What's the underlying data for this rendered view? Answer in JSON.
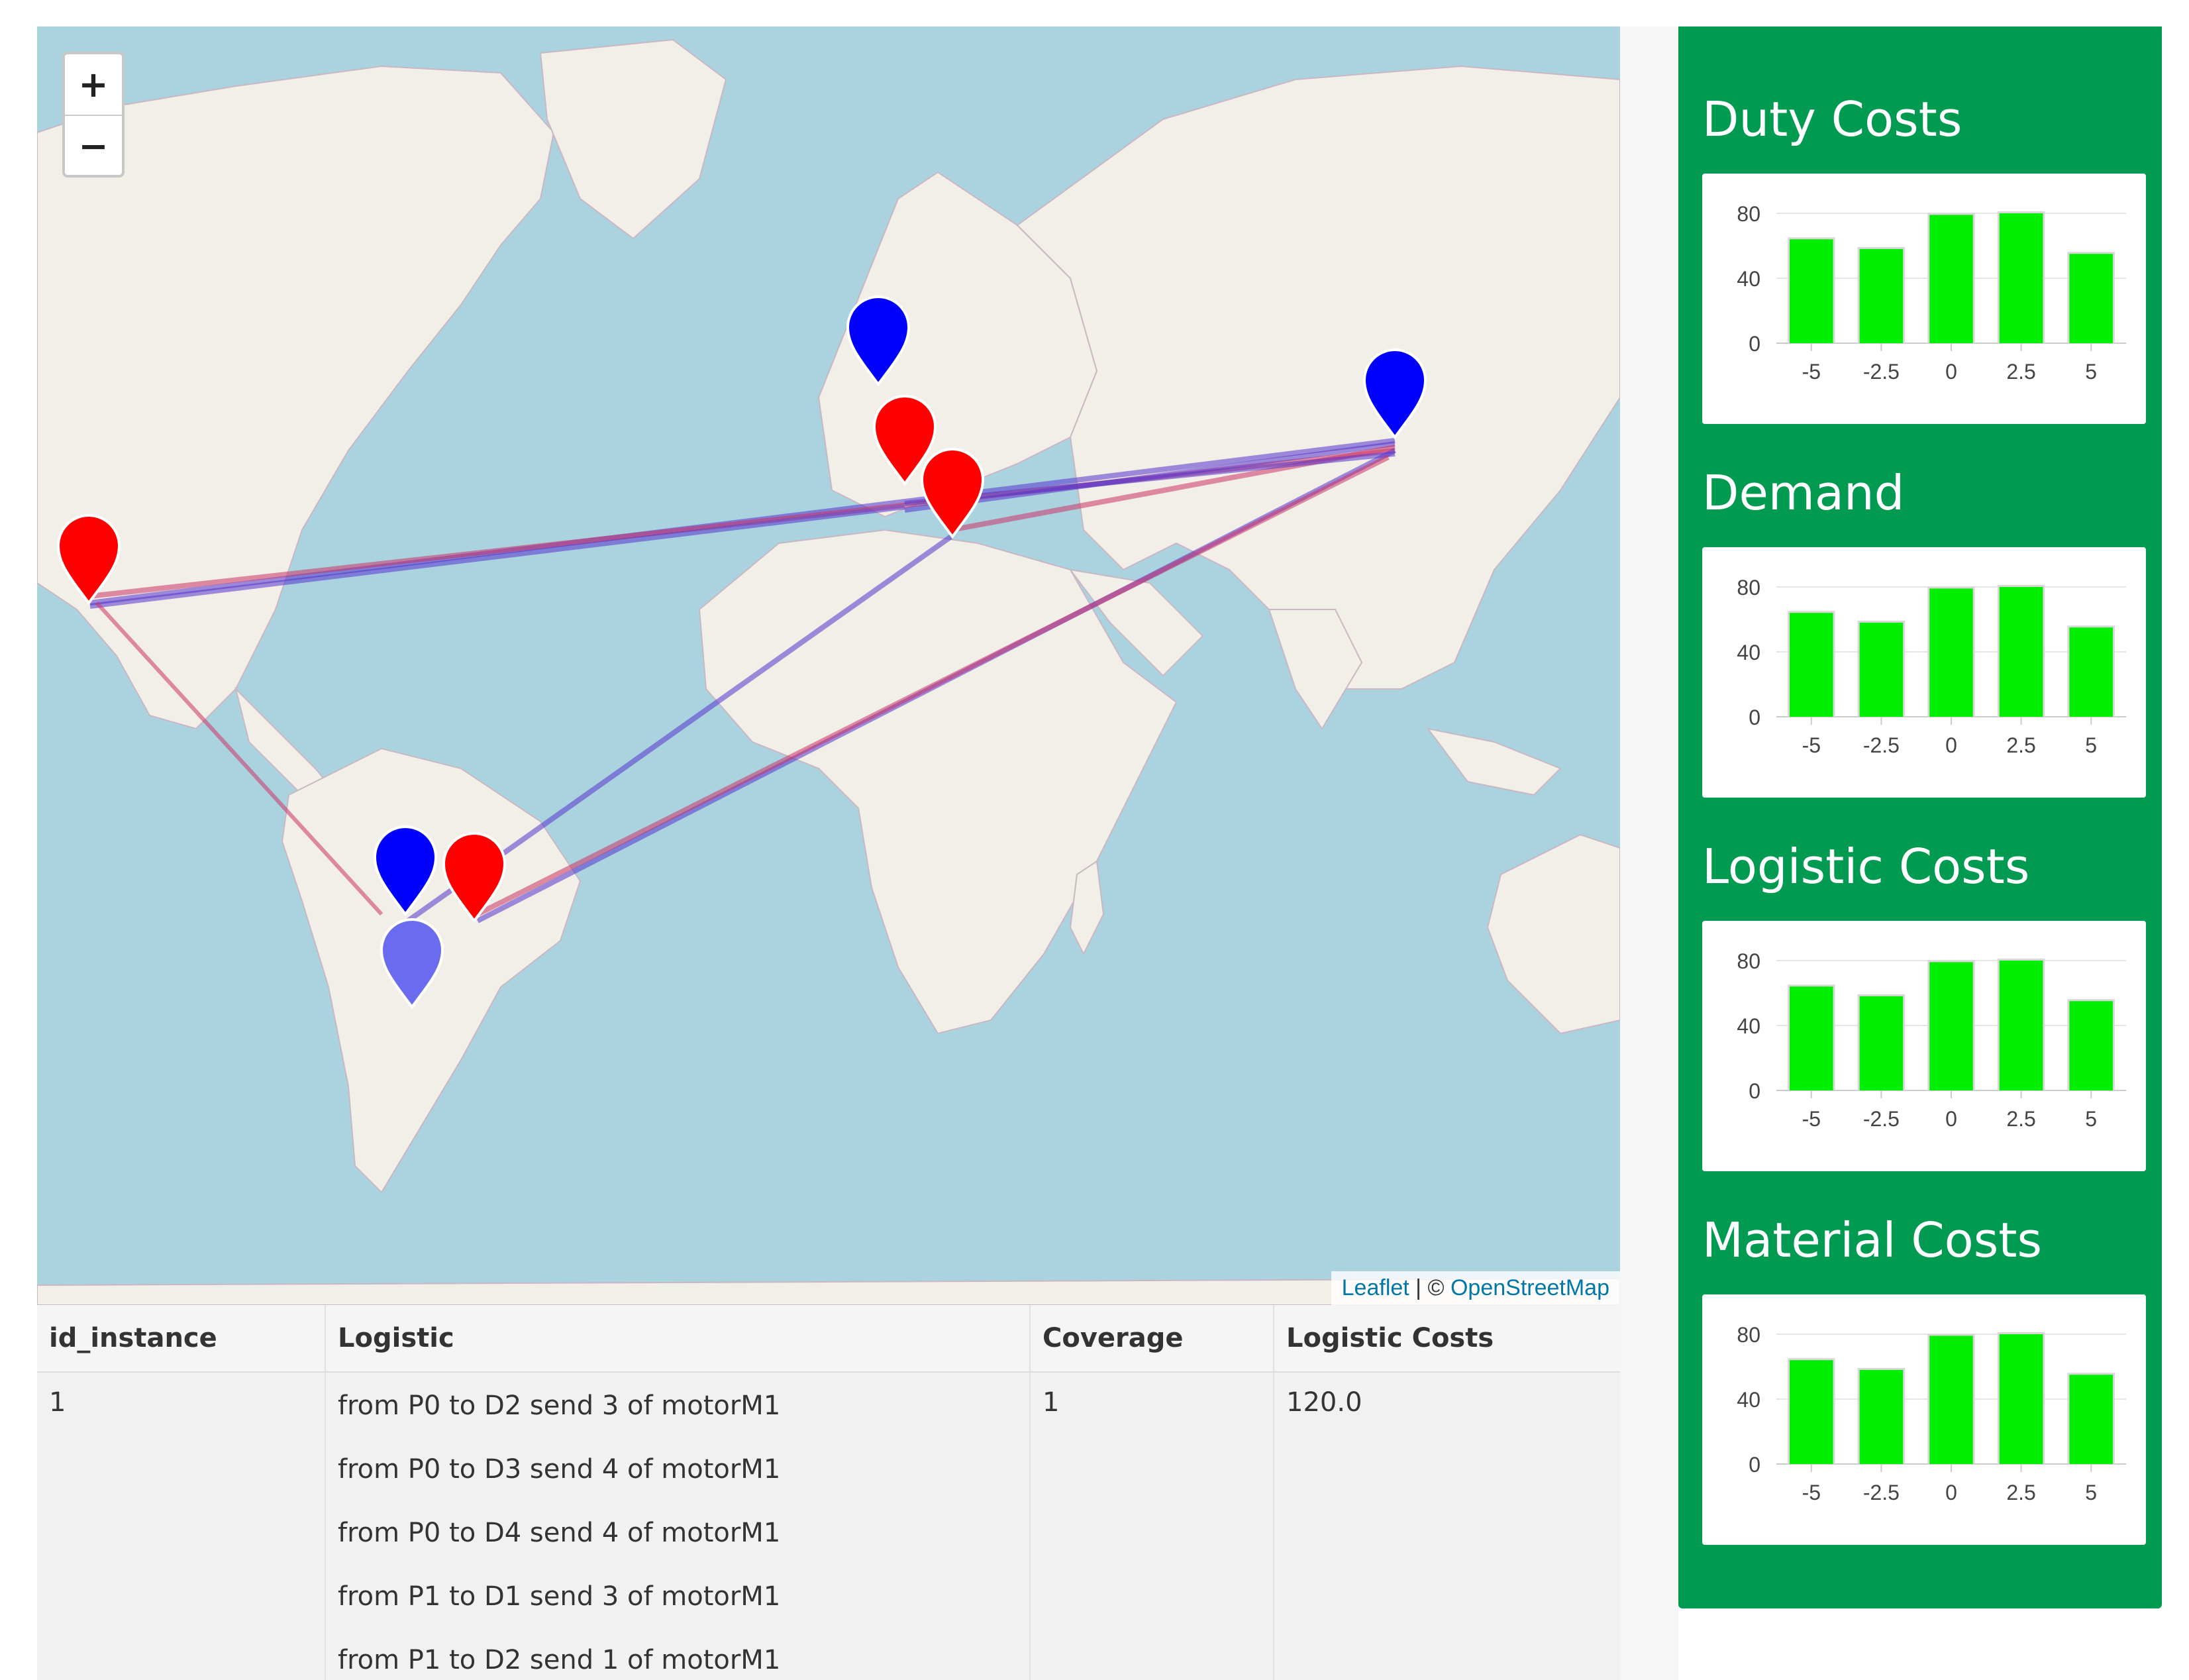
{
  "map": {
    "zoom_in_label": "+",
    "zoom_out_label": "−",
    "attribution": {
      "leaflet": "Leaflet",
      "separator": " | © ",
      "osm": "OpenStreetMap"
    },
    "colors": {
      "plant_marker": "#0000ff",
      "depot_marker": "#ff0000",
      "extra_marker": "#6b6bf0",
      "route": "#5533cc"
    },
    "markers": [
      "plant-P0",
      "plant-P1",
      "plant-P2",
      "depot-D0",
      "depot-D1",
      "depot-D2",
      "depot-D3",
      "extra"
    ]
  },
  "table": {
    "headers": [
      "id_instance",
      "Logistic",
      "Coverage",
      "Logistic Costs"
    ],
    "row": {
      "id_instance": "1",
      "logistic": [
        "from P0 to D2 send 3 of motorM1",
        "from P0 to D3 send 4 of motorM1",
        "from P0 to D4 send 4 of motorM1",
        "from P1 to D1 send 3 of motorM1",
        "from P1 to D2 send 1 of motorM1"
      ],
      "coverage": "1",
      "logistic_costs": "120.0"
    }
  },
  "sidebar": {
    "panels": [
      {
        "title": "Duty Costs"
      },
      {
        "title": "Demand"
      },
      {
        "title": "Logistic Costs"
      },
      {
        "title": "Material Costs"
      }
    ]
  },
  "chart_data": [
    {
      "type": "bar",
      "title": "Duty Costs",
      "categories": [
        "-5",
        "-2.5",
        "0",
        "2.5",
        "5"
      ],
      "values": [
        64,
        58,
        79,
        80,
        55
      ],
      "yticks": [
        "0",
        "40",
        "80"
      ],
      "ylim": [
        0,
        80
      ],
      "color": "#00ee00"
    },
    {
      "type": "bar",
      "title": "Demand",
      "categories": [
        "-5",
        "-2.5",
        "0",
        "2.5",
        "5"
      ],
      "values": [
        64,
        58,
        79,
        80,
        55
      ],
      "yticks": [
        "0",
        "40",
        "80"
      ],
      "ylim": [
        0,
        80
      ],
      "color": "#00ee00"
    },
    {
      "type": "bar",
      "title": "Logistic Costs",
      "categories": [
        "-5",
        "-2.5",
        "0",
        "2.5",
        "5"
      ],
      "values": [
        64,
        58,
        79,
        80,
        55
      ],
      "yticks": [
        "0",
        "40",
        "80"
      ],
      "ylim": [
        0,
        80
      ],
      "color": "#00ee00"
    },
    {
      "type": "bar",
      "title": "Material Costs",
      "categories": [
        "-5",
        "-2.5",
        "0",
        "2.5",
        "5"
      ],
      "values": [
        64,
        58,
        79,
        80,
        55
      ],
      "yticks": [
        "0",
        "40",
        "80"
      ],
      "ylim": [
        0,
        80
      ],
      "color": "#00ee00"
    }
  ]
}
